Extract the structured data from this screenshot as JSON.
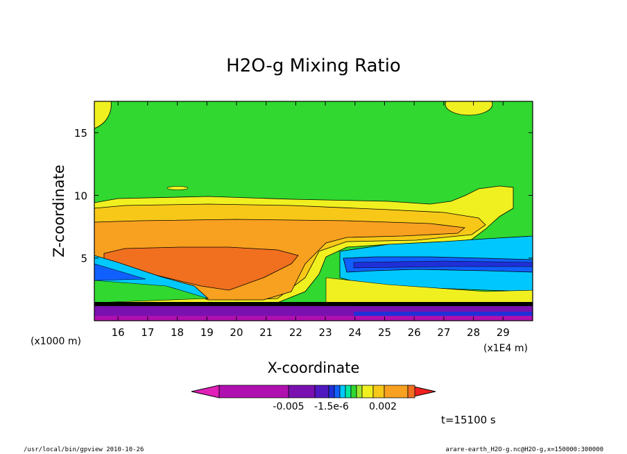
{
  "chart_data": {
    "type": "heatmap",
    "title": "H2O-g Mixing Ratio",
    "xlabel": "X-coordinate",
    "ylabel": "Z-coordinate",
    "x_unit_left": "(x1000 m)",
    "x_unit_right": "(x1E4 m)",
    "x_ticks": [
      "16",
      "17",
      "18",
      "19",
      "20",
      "21",
      "22",
      "23",
      "24",
      "25",
      "26",
      "27",
      "28",
      "29"
    ],
    "x_tick_values": [
      16,
      17,
      18,
      19,
      20,
      21,
      22,
      23,
      24,
      25,
      26,
      27,
      28,
      29
    ],
    "y_ticks": [
      "5",
      "10",
      "15"
    ],
    "y_tick_values": [
      5,
      10,
      15
    ],
    "xlim": [
      15.2,
      30.0
    ],
    "ylim": [
      0,
      17.5
    ],
    "colorbar": {
      "labels": [
        "-0.005",
        "-1.5e-6",
        "0.002"
      ],
      "colors": [
        "#e020b8",
        "#b010b0",
        "#7a10b0",
        "#5018c0",
        "#2030d8",
        "#1060ff",
        "#00c8ff",
        "#00e8a0",
        "#30d830",
        "#a0e830",
        "#f0f020",
        "#f8c818",
        "#f8a020",
        "#f07020",
        "#f02020"
      ]
    },
    "annotation": "t=15100 s",
    "footer_left": "/usr/local/bin/gpview  2010-10-26",
    "footer_right": "arare-earth_H2O-g.nc@H2O-g,x=150000:300000"
  }
}
